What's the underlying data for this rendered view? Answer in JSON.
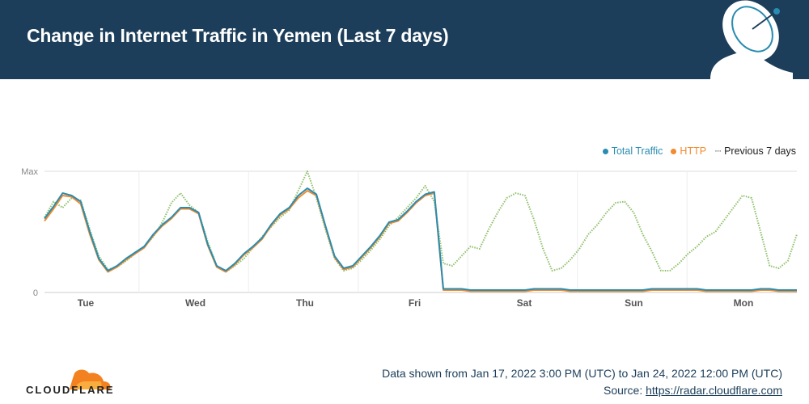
{
  "header": {
    "title": "Change in Internet Traffic in Yemen (Last 7 days)"
  },
  "legend": {
    "total_label": "Total Traffic",
    "http_label": "HTTP",
    "prev_label": "Previous 7 days"
  },
  "colors": {
    "header_bg": "#1c3e5a",
    "total": "#2a8cb0",
    "http": "#f28a2e",
    "previous": "#8fbf6a",
    "grid": "#e5e5e5"
  },
  "chart_data": {
    "type": "line",
    "ylabels": [
      "Max",
      "0"
    ],
    "ylim": [
      0,
      100
    ],
    "categories": [
      "Tue",
      "Wed",
      "Thu",
      "Fri",
      "Sat",
      "Sun",
      "Mon"
    ],
    "x": [
      0,
      2,
      4,
      6,
      8,
      10,
      12,
      14,
      16,
      18,
      20,
      22,
      24,
      26,
      28,
      30,
      32,
      34,
      36,
      38,
      40,
      42,
      44,
      46,
      48,
      50,
      52,
      54,
      56,
      58,
      60,
      62,
      64,
      66,
      68,
      70,
      72,
      74,
      76,
      78,
      80,
      82,
      84,
      86,
      88,
      90,
      92,
      94,
      96,
      98,
      100,
      102,
      104,
      106,
      108,
      110,
      112,
      114,
      116,
      118,
      120,
      122,
      124,
      126,
      128,
      130,
      132,
      134,
      136,
      138,
      140,
      142,
      144,
      146,
      148,
      150,
      152,
      154,
      156,
      158,
      160,
      162,
      164,
      166
    ],
    "series": [
      {
        "name": "Total Traffic",
        "color": "#2a8cb0",
        "values": [
          61,
          71,
          82,
          80,
          75,
          50,
          28,
          18,
          22,
          28,
          33,
          38,
          48,
          56,
          62,
          70,
          70,
          66,
          40,
          22,
          18,
          24,
          32,
          38,
          45,
          56,
          65,
          70,
          80,
          86,
          81,
          55,
          30,
          20,
          22,
          30,
          38,
          47,
          58,
          60,
          67,
          75,
          81,
          83,
          3,
          3,
          3,
          2,
          2,
          2,
          2,
          2,
          2,
          2,
          3,
          3,
          3,
          3,
          2,
          2,
          2,
          2,
          2,
          2,
          2,
          2,
          2,
          3,
          3,
          3,
          3,
          3,
          3,
          2,
          2,
          2,
          2,
          2,
          2,
          3,
          3,
          2,
          2,
          2
        ]
      },
      {
        "name": "HTTP",
        "color": "#f28a2e",
        "values": [
          59,
          69,
          80,
          79,
          73,
          48,
          27,
          17,
          21,
          27,
          32,
          37,
          47,
          55,
          61,
          69,
          69,
          65,
          39,
          21,
          17,
          23,
          31,
          37,
          44,
          55,
          64,
          69,
          78,
          84,
          80,
          54,
          29,
          19,
          21,
          29,
          37,
          46,
          57,
          59,
          66,
          74,
          80,
          82,
          2,
          2,
          2,
          1,
          1,
          1,
          1,
          1,
          1,
          1,
          2,
          2,
          2,
          2,
          1,
          1,
          1,
          1,
          1,
          1,
          1,
          1,
          1,
          2,
          2,
          2,
          2,
          2,
          2,
          1,
          1,
          1,
          1,
          1,
          1,
          2,
          2,
          1,
          1,
          1
        ]
      },
      {
        "name": "Previous 7 days",
        "color": "#8fbf6a",
        "values": [
          62,
          75,
          70,
          78,
          76,
          52,
          30,
          19,
          21,
          26,
          32,
          38,
          46,
          58,
          74,
          82,
          72,
          66,
          42,
          22,
          17,
          22,
          28,
          37,
          46,
          54,
          62,
          68,
          84,
          100,
          78,
          52,
          28,
          18,
          20,
          27,
          35,
          44,
          55,
          62,
          70,
          78,
          88,
          75,
          24,
          22,
          30,
          38,
          36,
          52,
          66,
          78,
          82,
          80,
          60,
          36,
          18,
          20,
          27,
          36,
          48,
          56,
          66,
          74,
          75,
          66,
          48,
          34,
          18,
          18,
          24,
          32,
          38,
          46,
          50,
          60,
          70,
          80,
          78,
          50,
          22,
          20,
          26,
          48
        ]
      }
    ]
  },
  "footer": {
    "brand": "CLOUDFLARE",
    "range_text": "Data shown from Jan 17, 2022 3:00 PM (UTC) to Jan 24, 2022 12:00 PM (UTC)",
    "source_prefix": "Source: ",
    "source_link": "https://radar.cloudflare.com"
  }
}
